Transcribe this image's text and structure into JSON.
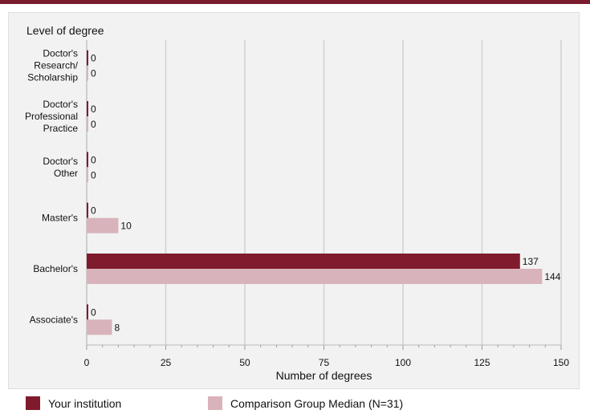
{
  "chart_data": {
    "type": "bar",
    "orientation": "horizontal",
    "y_axis_title": "Level of degree",
    "xlabel": "Number of degrees",
    "xlim": [
      0,
      150
    ],
    "xticks": [
      0,
      25,
      50,
      75,
      100,
      125,
      150
    ],
    "grid": true,
    "legend_placement": "bottom",
    "categories": [
      [
        "Doctor's",
        "Research/",
        "Scholarship"
      ],
      [
        "Doctor's",
        "Professional",
        "Practice"
      ],
      [
        "Doctor's",
        "Other"
      ],
      [
        "Master's"
      ],
      [
        "Bachelor's"
      ],
      [
        "Associate's"
      ]
    ],
    "series": [
      {
        "name": "Your institution",
        "color": "#7f1b2d",
        "values": [
          0,
          0,
          0,
          0,
          137,
          0
        ]
      },
      {
        "name": "Comparison Group Median (N=31)",
        "color": "#d9b3bb",
        "values": [
          0,
          0,
          0,
          10,
          144,
          8
        ]
      }
    ]
  }
}
